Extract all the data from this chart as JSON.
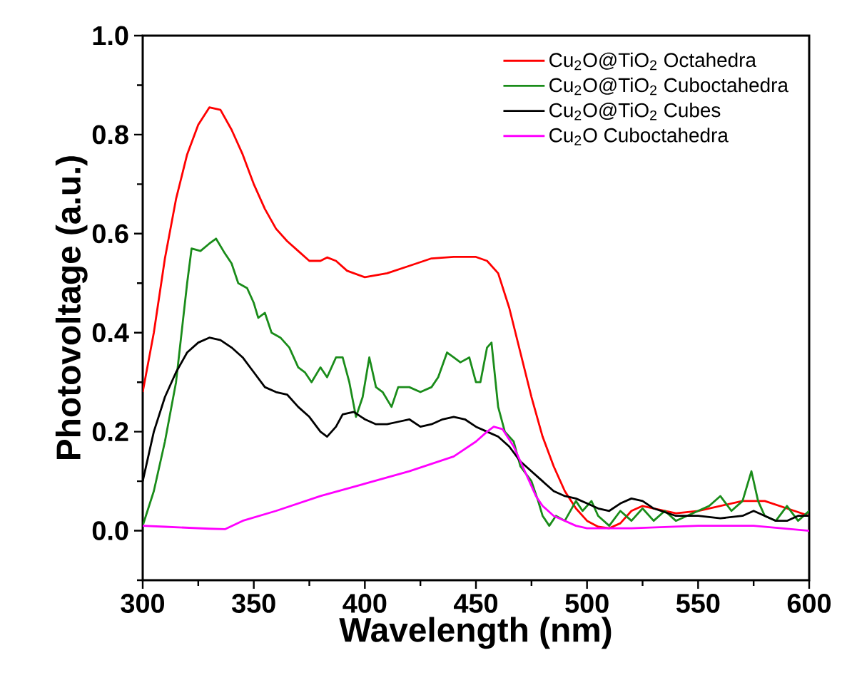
{
  "chart_data": {
    "type": "line",
    "xlabel": "Wavelength (nm)",
    "ylabel": "Photovoltage (a.u.)",
    "xlim": [
      300,
      600
    ],
    "ylim": [
      -0.1,
      1.0
    ],
    "xticks": [
      300,
      {
        "value": 325,
        "label": null
      },
      350,
      {
        "value": 375,
        "label": null
      },
      400,
      {
        "value": 425,
        "label": null
      },
      450,
      {
        "value": 475,
        "label": null
      },
      500,
      {
        "value": 525,
        "label": null
      },
      550,
      {
        "value": 575,
        "label": null
      },
      600
    ],
    "yticks": [
      {
        "value": -0.1,
        "label": null
      },
      {
        "value": 0.0,
        "label": "0.0"
      },
      {
        "value": 0.1,
        "label": null
      },
      {
        "value": 0.2,
        "label": "0.2"
      },
      {
        "value": 0.3,
        "label": null
      },
      {
        "value": 0.4,
        "label": "0.4"
      },
      {
        "value": 0.5,
        "label": null
      },
      {
        "value": 0.6,
        "label": "0.6"
      },
      {
        "value": 0.7,
        "label": null
      },
      {
        "value": 0.8,
        "label": "0.8"
      },
      {
        "value": 0.9,
        "label": null
      },
      {
        "value": 1.0,
        "label": "1.0"
      }
    ],
    "legend": "top right",
    "grid": false,
    "line_style": "solid",
    "series": [
      {
        "name": "Cu$_{2}$O@TiO$_{2}$ Octahedra",
        "color": "#ff0000",
        "x": [
          300,
          305,
          310,
          315,
          320,
          325,
          330,
          335,
          340,
          345,
          350,
          355,
          360,
          365,
          370,
          375,
          380,
          383,
          387,
          392,
          400,
          410,
          420,
          430,
          440,
          450,
          455,
          460,
          465,
          470,
          475,
          480,
          485,
          490,
          495,
          500,
          505,
          510,
          515,
          520,
          525,
          530,
          540,
          550,
          560,
          570,
          580,
          590,
          600
        ],
        "values": [
          0.28,
          0.4,
          0.55,
          0.67,
          0.76,
          0.82,
          0.855,
          0.85,
          0.81,
          0.76,
          0.7,
          0.65,
          0.61,
          0.585,
          0.565,
          0.545,
          0.545,
          0.552,
          0.545,
          0.525,
          0.512,
          0.52,
          0.535,
          0.55,
          0.553,
          0.553,
          0.545,
          0.52,
          0.45,
          0.36,
          0.27,
          0.19,
          0.13,
          0.08,
          0.045,
          0.02,
          0.008,
          0.005,
          0.015,
          0.04,
          0.05,
          0.045,
          0.035,
          0.04,
          0.05,
          0.06,
          0.06,
          0.045,
          0.03
        ]
      },
      {
        "name": "Cu$_{2}$O@TiO$_{2}$ Cuboctahedra",
        "color": "#1a8c1a",
        "x": [
          300,
          305,
          310,
          315,
          320,
          322,
          326,
          330,
          333,
          337,
          340,
          343,
          347,
          350,
          352,
          355,
          358,
          362,
          366,
          370,
          373,
          376,
          380,
          383,
          387,
          390,
          393,
          396,
          399,
          402,
          405,
          408,
          412,
          415,
          420,
          425,
          430,
          433,
          437,
          440,
          443,
          447,
          450,
          452,
          455,
          457,
          460,
          463,
          467,
          470,
          475,
          478,
          480,
          483,
          486,
          490,
          495,
          498,
          502,
          505,
          510,
          515,
          520,
          525,
          530,
          535,
          540,
          545,
          550,
          555,
          560,
          565,
          570,
          574,
          577,
          580,
          585,
          590,
          595,
          600
        ],
        "values": [
          0.01,
          0.08,
          0.18,
          0.3,
          0.5,
          0.57,
          0.565,
          0.58,
          0.59,
          0.56,
          0.54,
          0.5,
          0.49,
          0.46,
          0.43,
          0.44,
          0.4,
          0.39,
          0.37,
          0.33,
          0.32,
          0.3,
          0.33,
          0.31,
          0.35,
          0.35,
          0.3,
          0.23,
          0.27,
          0.35,
          0.29,
          0.28,
          0.25,
          0.29,
          0.29,
          0.28,
          0.29,
          0.31,
          0.36,
          0.35,
          0.34,
          0.35,
          0.3,
          0.3,
          0.37,
          0.38,
          0.25,
          0.2,
          0.18,
          0.13,
          0.1,
          0.06,
          0.03,
          0.01,
          0.03,
          0.02,
          0.06,
          0.04,
          0.06,
          0.03,
          0.01,
          0.04,
          0.02,
          0.045,
          0.02,
          0.04,
          0.02,
          0.03,
          0.04,
          0.05,
          0.07,
          0.04,
          0.06,
          0.12,
          0.06,
          0.03,
          0.02,
          0.05,
          0.02,
          0.04
        ]
      },
      {
        "name": "Cu$_{2}$O@TiO$_{2}$ Cubes",
        "color": "#000000",
        "x": [
          300,
          305,
          310,
          315,
          320,
          325,
          330,
          335,
          340,
          345,
          350,
          355,
          360,
          365,
          370,
          375,
          380,
          383,
          387,
          390,
          395,
          400,
          405,
          410,
          415,
          420,
          425,
          430,
          435,
          440,
          445,
          450,
          455,
          460,
          465,
          470,
          475,
          480,
          485,
          490,
          495,
          500,
          505,
          510,
          515,
          520,
          525,
          530,
          540,
          550,
          560,
          570,
          575,
          580,
          585,
          590,
          595,
          600
        ],
        "values": [
          0.1,
          0.2,
          0.27,
          0.32,
          0.36,
          0.38,
          0.39,
          0.385,
          0.37,
          0.35,
          0.32,
          0.29,
          0.28,
          0.275,
          0.25,
          0.23,
          0.2,
          0.19,
          0.21,
          0.235,
          0.24,
          0.225,
          0.215,
          0.215,
          0.22,
          0.225,
          0.21,
          0.215,
          0.225,
          0.23,
          0.225,
          0.21,
          0.2,
          0.19,
          0.17,
          0.14,
          0.12,
          0.1,
          0.08,
          0.07,
          0.065,
          0.055,
          0.045,
          0.04,
          0.055,
          0.065,
          0.06,
          0.045,
          0.03,
          0.03,
          0.025,
          0.03,
          0.04,
          0.03,
          0.02,
          0.02,
          0.03,
          0.03
        ]
      },
      {
        "name": "Cu$_{2}$O Cuboctahedra",
        "color": "#ff00ff",
        "x": [
          300,
          310,
          320,
          330,
          337,
          345,
          360,
          380,
          400,
          420,
          440,
          450,
          455,
          458,
          462,
          467,
          472,
          477,
          480,
          485,
          490,
          495,
          500,
          520,
          550,
          575,
          600
        ],
        "values": [
          0.01,
          0.008,
          0.006,
          0.004,
          0.003,
          0.02,
          0.04,
          0.07,
          0.095,
          0.12,
          0.15,
          0.18,
          0.2,
          0.21,
          0.205,
          0.17,
          0.12,
          0.07,
          0.05,
          0.03,
          0.02,
          0.01,
          0.005,
          0.005,
          0.01,
          0.01,
          0.0
        ]
      }
    ]
  }
}
